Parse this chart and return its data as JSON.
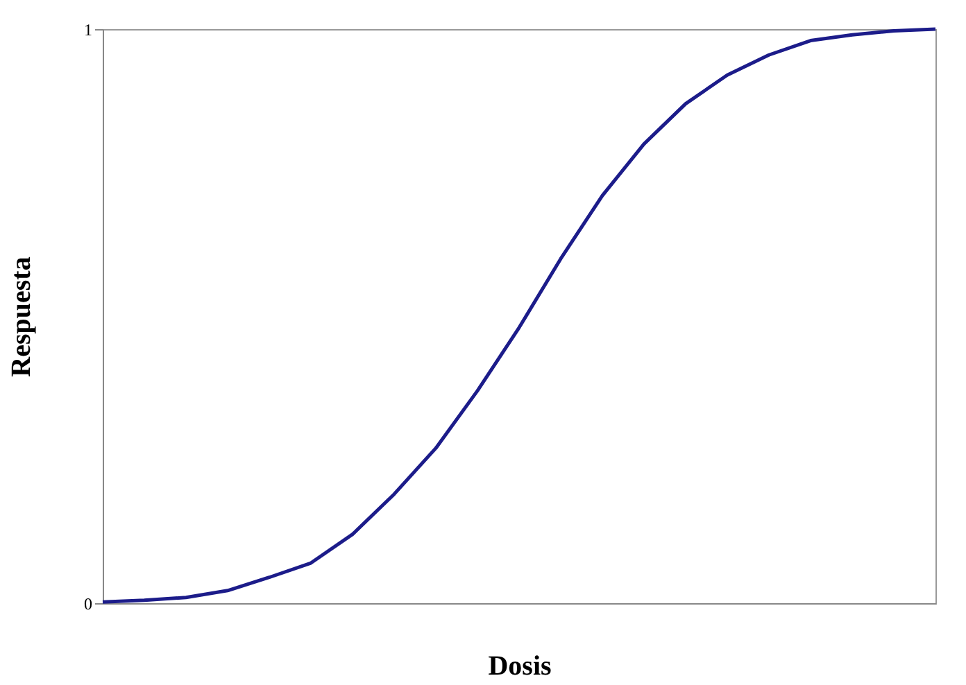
{
  "chart_data": {
    "type": "line",
    "xlabel": "Dosis",
    "ylabel": "Respuesta",
    "categories": [
      null,
      null,
      null,
      null,
      null,
      null,
      null,
      null,
      null,
      null,
      null,
      null,
      null,
      null,
      null,
      null,
      null,
      null,
      null,
      null,
      null
    ],
    "series": [
      {
        "color": "#1c1c8a",
        "values": [
          0.002,
          0.005,
          0.01,
          0.022,
          0.045,
          0.07,
          0.12,
          0.19,
          0.27,
          0.37,
          0.48,
          0.6,
          0.71,
          0.8,
          0.87,
          0.92,
          0.955,
          0.98,
          0.99,
          0.997,
          1.0
        ]
      }
    ],
    "ylim": [
      0,
      1
    ],
    "yticks": [
      0,
      1
    ],
    "tick_labels": "y",
    "grid": false,
    "marker": "none",
    "line_style": "solid"
  }
}
